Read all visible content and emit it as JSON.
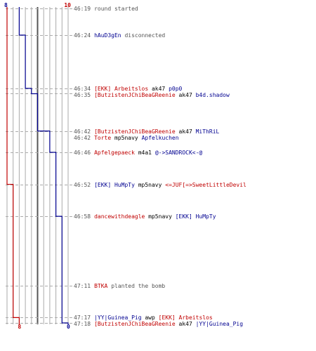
{
  "colors": {
    "ct": "#000090",
    "t": "#c00000",
    "text": "#555555",
    "grid": "#aaaaaa",
    "midline": "#555555"
  },
  "scores": {
    "ct_top": "8",
    "t_top": "10",
    "ct_bottom": "0",
    "t_bottom": "8"
  },
  "events": [
    {
      "time": "46:19",
      "type": "msg",
      "text": "round started"
    },
    {
      "time": "46:24",
      "type": "disconnect",
      "player": "hAuD3gEn",
      "team": "ct",
      "text": "disconnected"
    },
    {
      "time": "46:34",
      "type": "kill",
      "killer": "[EKK] Arbeitslos",
      "killer_team": "t",
      "weapon": "ak47",
      "victim": "p0p0",
      "victim_team": "ct"
    },
    {
      "time": "46:35",
      "type": "kill",
      "killer": "[ButzistenJChiBeaGReenie",
      "killer_team": "t",
      "weapon": "ak47",
      "victim": "b4d.shadow",
      "victim_team": "ct"
    },
    {
      "time": "46:42",
      "type": "kill",
      "killer": "[ButzistenJChiBeaGReenie",
      "killer_team": "t",
      "weapon": "ak47",
      "victim": "MiThRiL",
      "victim_team": "ct"
    },
    {
      "time": "46:42",
      "type": "kill",
      "killer": "Torte",
      "killer_team": "t",
      "weapon": "mp5navy",
      "victim": "Apfelkuchen",
      "victim_team": "ct"
    },
    {
      "time": "46:46",
      "type": "kill",
      "killer": "Apfelgepaeck",
      "killer_team": "t",
      "weapon": "m4a1",
      "victim": "@->SANDROCK<-@",
      "victim_team": "ct"
    },
    {
      "time": "46:52",
      "type": "kill",
      "killer": "[EKK] HuMpTy",
      "killer_team": "ct",
      "weapon": "mp5navy",
      "victim": "<=JUF[=>SweetLittleDevil",
      "victim_team": "t"
    },
    {
      "time": "46:58",
      "type": "kill",
      "killer": "dancewithdeagle",
      "killer_team": "t",
      "weapon": "mp5navy",
      "victim": "[EKK] HuMpTy",
      "victim_team": "ct"
    },
    {
      "time": "47:11",
      "type": "bomb",
      "player": "BTKA",
      "team": "t",
      "text": "planted the bomb"
    },
    {
      "time": "47:17",
      "type": "kill",
      "killer": "|YY|Guinea_Pig",
      "killer_team": "ct",
      "weapon": "awp",
      "victim": "[EKK] Arbeitslos",
      "victim_team": "t"
    },
    {
      "time": "47:18",
      "type": "kill",
      "killer": "[ButzistenJChiBeaGReenie",
      "killer_team": "t",
      "weapon": "ak47",
      "victim": "|YY|Guinea_Pig",
      "victim_team": "ct"
    }
  ],
  "chart_data": {
    "type": "line",
    "x_label": "",
    "y_label": "",
    "time_range": [
      "46:19",
      "47:18"
    ],
    "alive_max": 10,
    "series": [
      {
        "team": "ct",
        "points": [
          {
            "t": "46:19",
            "alive": 8
          },
          {
            "t": "46:24",
            "alive": 7
          },
          {
            "t": "46:34",
            "alive": 6
          },
          {
            "t": "46:35",
            "alive": 5
          },
          {
            "t": "46:42",
            "alive": 4
          },
          {
            "t": "46:42",
            "alive": 3
          },
          {
            "t": "46:46",
            "alive": 2
          },
          {
            "t": "46:58",
            "alive": 1
          },
          {
            "t": "47:18",
            "alive": 0
          }
        ]
      },
      {
        "team": "t",
        "points": [
          {
            "t": "46:19",
            "alive": 10
          },
          {
            "t": "46:52",
            "alive": 9
          },
          {
            "t": "47:17",
            "alive": 8
          },
          {
            "t": "47:18",
            "alive": 8
          }
        ]
      }
    ]
  }
}
